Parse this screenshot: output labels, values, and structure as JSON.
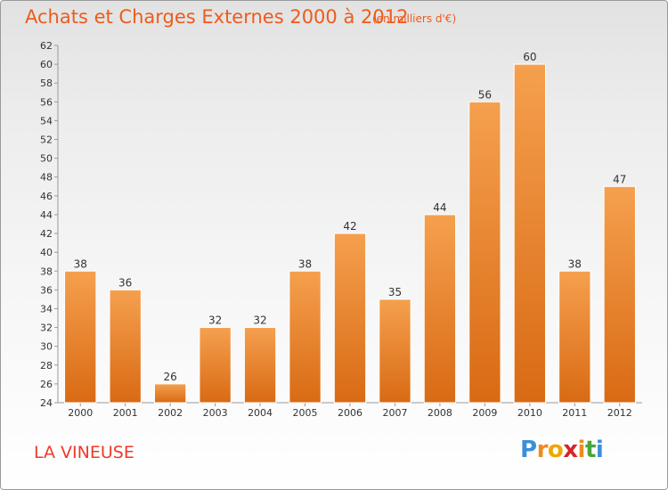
{
  "header": {
    "title": "Achats et Charges Externes 2000 à 2012",
    "unit": "(en milliers d'€)"
  },
  "footer": {
    "commune": "LA VINEUSE",
    "logo_letters": [
      "P",
      "r",
      "o",
      "x",
      "i",
      "t",
      "i"
    ],
    "logo_colors": [
      "#3b8fd8",
      "#f08a1e",
      "#f0a500",
      "#d8232a",
      "#f08a1e",
      "#4aa53a",
      "#3b8fd8"
    ]
  },
  "chart_data": {
    "type": "bar",
    "categories": [
      "2000",
      "2001",
      "2002",
      "2003",
      "2004",
      "2005",
      "2006",
      "2007",
      "2008",
      "2009",
      "2010",
      "2011",
      "2012"
    ],
    "values": [
      38,
      36,
      26,
      32,
      32,
      38,
      42,
      35,
      44,
      56,
      60,
      38,
      47
    ],
    "data_labels": [
      "38",
      "36",
      "26",
      "32",
      "32",
      "38",
      "42",
      "35",
      "44",
      "56",
      "60",
      "38",
      "47"
    ],
    "ylim": [
      24,
      62
    ],
    "yticks": [
      "24",
      "26",
      "28",
      "30",
      "32",
      "34",
      "36",
      "38",
      "40",
      "42",
      "44",
      "46",
      "48",
      "50",
      "52",
      "54",
      "56",
      "58",
      "60",
      "62"
    ],
    "grid": false,
    "bar_color_top": "#f5a04e",
    "bar_color_bottom": "#d96a14",
    "bar_edge_color": "#ffffff"
  }
}
